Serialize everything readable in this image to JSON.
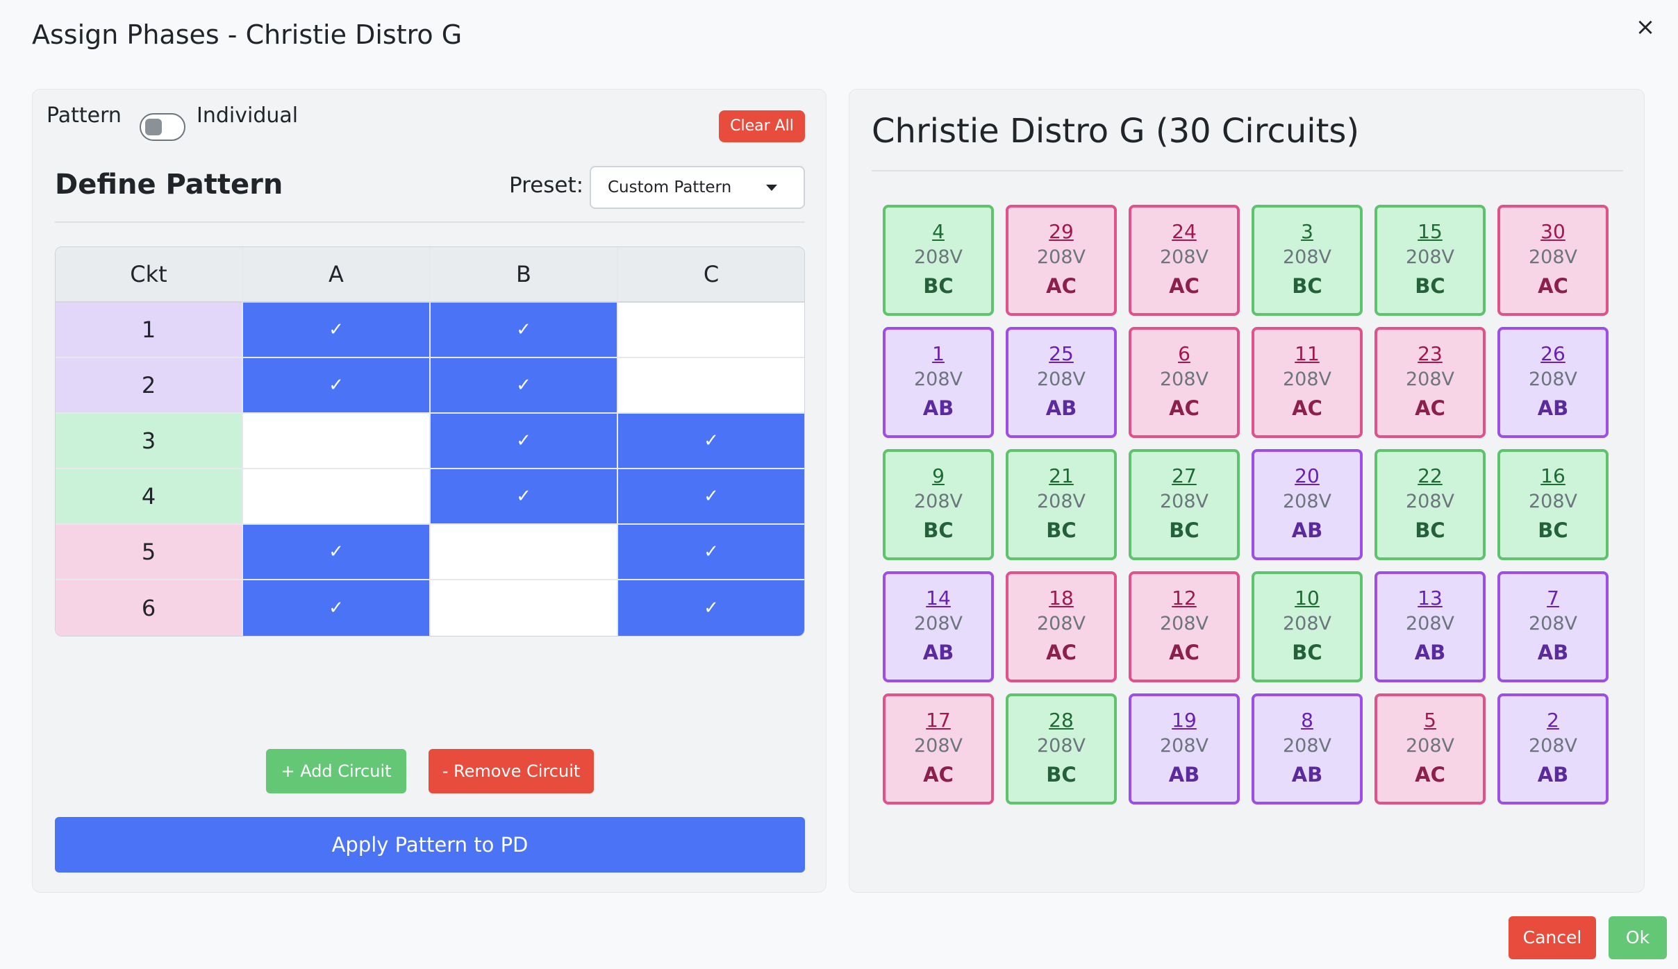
{
  "modal": {
    "title": "Assign Phases - Christie Distro G",
    "close_icon": "×"
  },
  "left": {
    "mode_left": "Pattern",
    "mode_right": "Individual",
    "toggle_on": false,
    "clear_all": "Clear All",
    "section_title": "Define Pattern",
    "preset_label": "Preset:",
    "preset_value": "Custom Pattern",
    "grid": {
      "headers": [
        "Ckt",
        "A",
        "B",
        "C"
      ],
      "rows": [
        {
          "ckt": "1",
          "group": 1,
          "a": true,
          "b": true,
          "c": false
        },
        {
          "ckt": "2",
          "group": 1,
          "a": true,
          "b": true,
          "c": false
        },
        {
          "ckt": "3",
          "group": 2,
          "a": false,
          "b": true,
          "c": true
        },
        {
          "ckt": "4",
          "group": 2,
          "a": false,
          "b": true,
          "c": true
        },
        {
          "ckt": "5",
          "group": 3,
          "a": true,
          "b": false,
          "c": true
        },
        {
          "ckt": "6",
          "group": 3,
          "a": true,
          "b": false,
          "c": true
        }
      ],
      "check_glyph": "✓"
    },
    "add_circuit": "+ Add Circuit",
    "remove_circuit": "- Remove Circuit",
    "apply": "Apply Pattern to PD"
  },
  "right": {
    "title": "Christie Distro G (30 Circuits)",
    "circuits": [
      {
        "num": "4",
        "volt": "208V",
        "phase": "BC"
      },
      {
        "num": "29",
        "volt": "208V",
        "phase": "AC"
      },
      {
        "num": "24",
        "volt": "208V",
        "phase": "AC"
      },
      {
        "num": "3",
        "volt": "208V",
        "phase": "BC"
      },
      {
        "num": "15",
        "volt": "208V",
        "phase": "BC"
      },
      {
        "num": "30",
        "volt": "208V",
        "phase": "AC"
      },
      {
        "num": "1",
        "volt": "208V",
        "phase": "AB"
      },
      {
        "num": "25",
        "volt": "208V",
        "phase": "AB"
      },
      {
        "num": "6",
        "volt": "208V",
        "phase": "AC"
      },
      {
        "num": "11",
        "volt": "208V",
        "phase": "AC"
      },
      {
        "num": "23",
        "volt": "208V",
        "phase": "AC"
      },
      {
        "num": "26",
        "volt": "208V",
        "phase": "AB"
      },
      {
        "num": "9",
        "volt": "208V",
        "phase": "BC"
      },
      {
        "num": "21",
        "volt": "208V",
        "phase": "BC"
      },
      {
        "num": "27",
        "volt": "208V",
        "phase": "BC"
      },
      {
        "num": "20",
        "volt": "208V",
        "phase": "AB"
      },
      {
        "num": "22",
        "volt": "208V",
        "phase": "BC"
      },
      {
        "num": "16",
        "volt": "208V",
        "phase": "BC"
      },
      {
        "num": "14",
        "volt": "208V",
        "phase": "AB"
      },
      {
        "num": "18",
        "volt": "208V",
        "phase": "AC"
      },
      {
        "num": "12",
        "volt": "208V",
        "phase": "AC"
      },
      {
        "num": "10",
        "volt": "208V",
        "phase": "BC"
      },
      {
        "num": "13",
        "volt": "208V",
        "phase": "AB"
      },
      {
        "num": "7",
        "volt": "208V",
        "phase": "AB"
      },
      {
        "num": "17",
        "volt": "208V",
        "phase": "AC"
      },
      {
        "num": "28",
        "volt": "208V",
        "phase": "BC"
      },
      {
        "num": "19",
        "volt": "208V",
        "phase": "AB"
      },
      {
        "num": "8",
        "volt": "208V",
        "phase": "AB"
      },
      {
        "num": "5",
        "volt": "208V",
        "phase": "AC"
      },
      {
        "num": "2",
        "volt": "208V",
        "phase": "AB"
      }
    ]
  },
  "footer": {
    "cancel": "Cancel",
    "ok": "Ok"
  },
  "colors": {
    "primary": "#4b73f5",
    "danger": "#e74c3c",
    "success": "#63c776",
    "phase_ab": "#9b4ee8",
    "phase_ac": "#e0528b",
    "phase_bc": "#5fc26f"
  }
}
